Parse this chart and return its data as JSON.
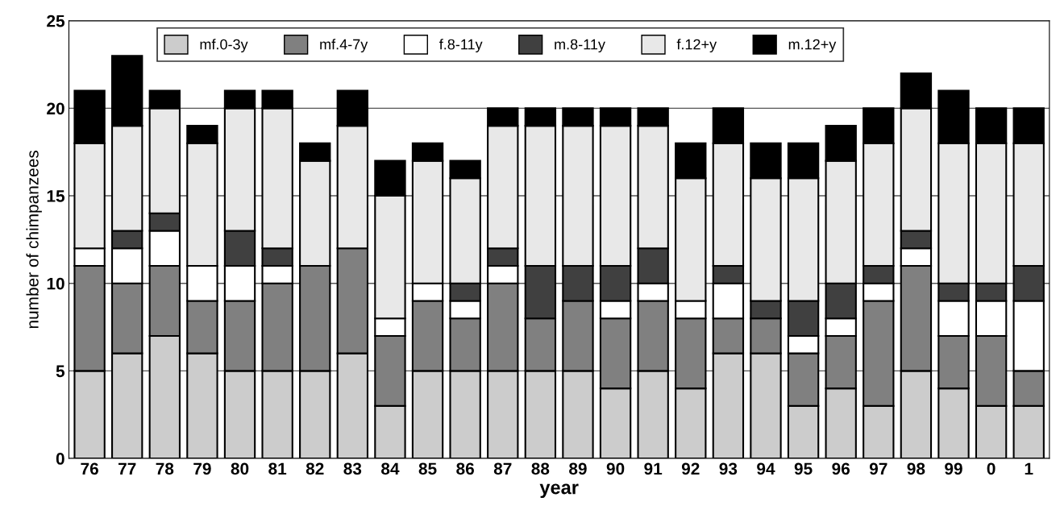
{
  "chart_data": {
    "type": "bar",
    "stacked": true,
    "xlabel": "year",
    "ylabel": "number of chimpanzees",
    "categories": [
      "76",
      "77",
      "78",
      "79",
      "80",
      "81",
      "82",
      "83",
      "84",
      "85",
      "86",
      "87",
      "88",
      "89",
      "90",
      "91",
      "92",
      "93",
      "94",
      "95",
      "96",
      "97",
      "98",
      "99",
      "0",
      "1"
    ],
    "series": [
      {
        "name": "mf.0-3y",
        "color": "#cccccc",
        "values": [
          5,
          6,
          7,
          6,
          5,
          5,
          5,
          6,
          3,
          5,
          5,
          5,
          5,
          5,
          4,
          5,
          4,
          6,
          6,
          3,
          4,
          3,
          5,
          4,
          3,
          3
        ]
      },
      {
        "name": "mf.4-7y",
        "color": "#808080",
        "values": [
          6,
          4,
          4,
          3,
          4,
          5,
          6,
          6,
          4,
          4,
          3,
          5,
          3,
          4,
          4,
          4,
          4,
          2,
          2,
          3,
          3,
          6,
          6,
          3,
          4,
          2
        ]
      },
      {
        "name": "f.8-11y",
        "color": "#ffffff",
        "values": [
          1,
          2,
          2,
          2,
          2,
          1,
          0,
          0,
          1,
          1,
          1,
          1,
          0,
          0,
          1,
          1,
          1,
          2,
          0,
          1,
          1,
          1,
          1,
          2,
          2,
          4
        ]
      },
      {
        "name": "m.8-11y",
        "color": "#404040",
        "values": [
          0,
          1,
          1,
          0,
          2,
          1,
          0,
          0,
          0,
          0,
          1,
          1,
          3,
          2,
          2,
          2,
          0,
          1,
          1,
          2,
          2,
          1,
          1,
          1,
          1,
          2
        ]
      },
      {
        "name": "f.12+y",
        "color": "#e8e8e8",
        "values": [
          6,
          6,
          6,
          7,
          7,
          8,
          6,
          7,
          7,
          7,
          6,
          7,
          8,
          8,
          8,
          7,
          7,
          7,
          7,
          7,
          7,
          7,
          7,
          8,
          8,
          7
        ]
      },
      {
        "name": "m.12+y",
        "color": "#000000",
        "values": [
          3,
          4,
          1,
          1,
          1,
          1,
          1,
          2,
          2,
          1,
          1,
          1,
          1,
          1,
          1,
          1,
          2,
          2,
          2,
          2,
          2,
          2,
          2,
          3,
          2,
          2
        ]
      }
    ],
    "ylim": [
      0,
      25
    ],
    "yticks": [
      0,
      5,
      10,
      15,
      20,
      25
    ],
    "grid": "y",
    "legend": "top"
  }
}
